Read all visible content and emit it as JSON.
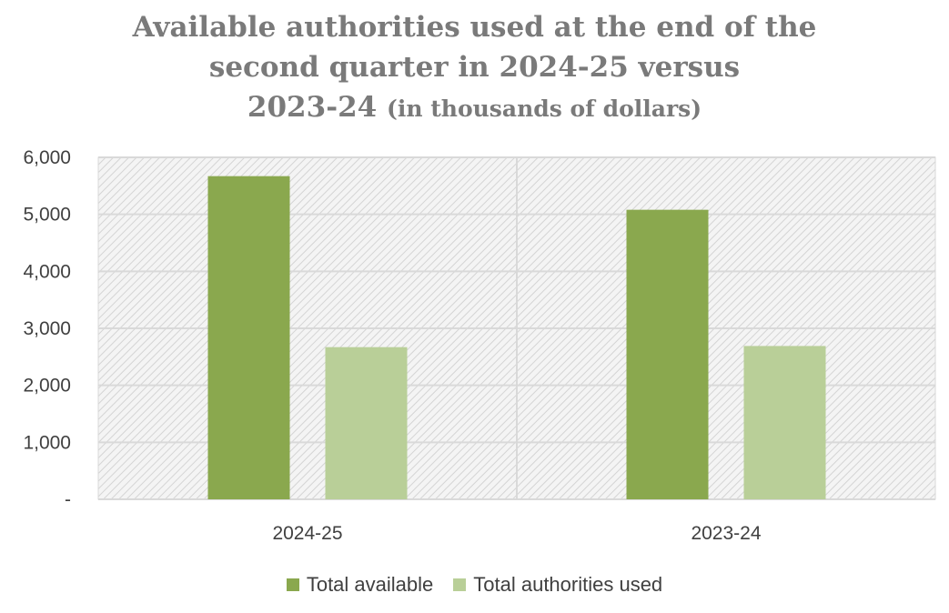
{
  "chart_data": {
    "type": "bar",
    "title_line1": "Available authorities used at the end of the",
    "title_line2": "second quarter in 2024-25 versus",
    "title_line3": "2023-24",
    "title_line3_suffix": "(in thousands of dollars)",
    "categories": [
      "2024-25",
      "2023-24"
    ],
    "series": [
      {
        "name": "Total available",
        "values": [
          5670,
          5080
        ],
        "color": "#8aa84e"
      },
      {
        "name": "Total authorities used",
        "values": [
          2670,
          2690
        ],
        "color": "#b9cf98"
      }
    ],
    "yticks": [
      0,
      1000,
      2000,
      3000,
      4000,
      5000,
      6000
    ],
    "ytick_labels": [
      "-",
      "1,000",
      "2,000",
      "3,000",
      "4,000",
      "5,000",
      "6,000"
    ],
    "ylim": [
      0,
      6000
    ],
    "legend_position": "bottom",
    "grid": true
  }
}
